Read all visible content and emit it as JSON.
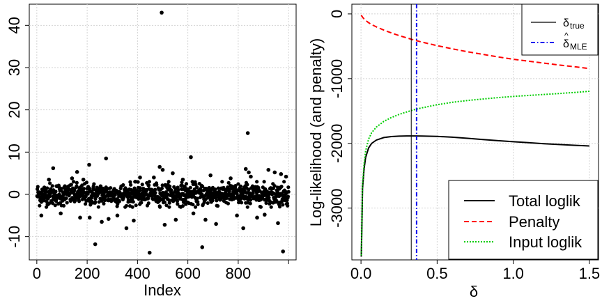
{
  "chart_data": [
    {
      "type": "scatter",
      "title": "",
      "xlabel": "Index",
      "ylabel": "",
      "xlim": [
        -30,
        1030
      ],
      "ylim": [
        -15.5,
        45
      ],
      "xticks": [
        0,
        200,
        400,
        600,
        800,
        1000
      ],
      "xtick_labels": [
        "0",
        "200",
        "400",
        "600",
        "800",
        ""
      ],
      "yticks": [
        -10,
        0,
        10,
        20,
        30,
        40
      ],
      "ytick_labels": [
        "-10",
        "0",
        "10",
        "20",
        "30",
        "40"
      ],
      "grid": true,
      "n_points": 1000,
      "base_spread_sd": 1.3,
      "outliers": [
        {
          "x": 18,
          "y": -5
        },
        {
          "x": 48,
          "y": 3.5
        },
        {
          "x": 65,
          "y": 6.2
        },
        {
          "x": 95,
          "y": -4.5
        },
        {
          "x": 140,
          "y": 3.8
        },
        {
          "x": 160,
          "y": 5.3
        },
        {
          "x": 172,
          "y": -5.5
        },
        {
          "x": 185,
          "y": 3.5
        },
        {
          "x": 208,
          "y": 7
        },
        {
          "x": 210,
          "y": -5.5
        },
        {
          "x": 232,
          "y": -11.8
        },
        {
          "x": 258,
          "y": -6.5
        },
        {
          "x": 275,
          "y": 8.5
        },
        {
          "x": 285,
          "y": -5.8
        },
        {
          "x": 320,
          "y": -5
        },
        {
          "x": 356,
          "y": -8
        },
        {
          "x": 385,
          "y": -6.2
        },
        {
          "x": 410,
          "y": 4
        },
        {
          "x": 448,
          "y": -13.8
        },
        {
          "x": 465,
          "y": 4
        },
        {
          "x": 488,
          "y": 6.5
        },
        {
          "x": 496,
          "y": 43
        },
        {
          "x": 500,
          "y": 5.8
        },
        {
          "x": 508,
          "y": -7.2
        },
        {
          "x": 540,
          "y": 5
        },
        {
          "x": 552,
          "y": -6
        },
        {
          "x": 580,
          "y": 3.5
        },
        {
          "x": 612,
          "y": 8.8
        },
        {
          "x": 622,
          "y": -4.5
        },
        {
          "x": 657,
          "y": -12.5
        },
        {
          "x": 670,
          "y": -6
        },
        {
          "x": 690,
          "y": 4.5
        },
        {
          "x": 712,
          "y": -7
        },
        {
          "x": 770,
          "y": 3.8
        },
        {
          "x": 795,
          "y": -5
        },
        {
          "x": 820,
          "y": -8
        },
        {
          "x": 830,
          "y": 6
        },
        {
          "x": 838,
          "y": 14.5
        },
        {
          "x": 842,
          "y": 5.2
        },
        {
          "x": 850,
          "y": 4.2
        },
        {
          "x": 875,
          "y": -5.5
        },
        {
          "x": 905,
          "y": -4.8
        },
        {
          "x": 920,
          "y": 5.8
        },
        {
          "x": 945,
          "y": 5.2
        },
        {
          "x": 958,
          "y": -6.8
        },
        {
          "x": 970,
          "y": 4.8
        },
        {
          "x": 978,
          "y": -13.5
        },
        {
          "x": 990,
          "y": 4.2
        }
      ]
    },
    {
      "type": "line",
      "title": "",
      "xlabel": "δ",
      "ylabel": "Log-likelihood (and penalty)",
      "xlim": [
        -0.06,
        1.56
      ],
      "ylim": [
        -3800,
        150
      ],
      "xticks": [
        0,
        0.5,
        1.0,
        1.5
      ],
      "xtick_labels": [
        "0.0",
        "0.5",
        "1.0",
        "1.5"
      ],
      "yticks": [
        -3000,
        -2000,
        -1000,
        0
      ],
      "ytick_labels": [
        "-3000",
        "-2000",
        "-1000",
        "0"
      ],
      "grid": true,
      "vlines": [
        {
          "name": "δ true",
          "x": 0.33,
          "color": "#000000",
          "style": "solid"
        },
        {
          "name": "δ MLE",
          "x": 0.365,
          "color": "#0000ee",
          "style": "dotdash"
        }
      ],
      "series": [
        {
          "name": "Total loglik",
          "color": "#000000",
          "style": "solid",
          "x": [
            0.002,
            0.005,
            0.01,
            0.02,
            0.03,
            0.05,
            0.07,
            0.1,
            0.15,
            0.2,
            0.25,
            0.3,
            0.35,
            0.4,
            0.5,
            0.6,
            0.7,
            0.8,
            0.9,
            1.0,
            1.1,
            1.2,
            1.3,
            1.4,
            1.5
          ],
          "y": [
            -3750,
            -3400,
            -2700,
            -2400,
            -2220,
            -2070,
            -2000,
            -1950,
            -1910,
            -1895,
            -1888,
            -1885,
            -1885,
            -1887,
            -1893,
            -1905,
            -1922,
            -1940,
            -1958,
            -1975,
            -1990,
            -2005,
            -2018,
            -2030,
            -2040
          ]
        },
        {
          "name": "Penalty",
          "color": "#ff0000",
          "style": "dashed",
          "x": [
            0.002,
            0.01,
            0.02,
            0.03,
            0.05,
            0.07,
            0.1,
            0.15,
            0.2,
            0.25,
            0.3,
            0.35,
            0.4,
            0.5,
            0.6,
            0.7,
            0.8,
            0.9,
            1.0,
            1.1,
            1.2,
            1.3,
            1.4,
            1.5
          ],
          "y": [
            -20,
            -50,
            -78,
            -100,
            -135,
            -165,
            -200,
            -250,
            -295,
            -335,
            -370,
            -405,
            -435,
            -490,
            -540,
            -585,
            -625,
            -665,
            -700,
            -730,
            -760,
            -790,
            -815,
            -845
          ]
        },
        {
          "name": "Input loglik",
          "color": "#00cd00",
          "style": "dotted",
          "x": [
            0.002,
            0.005,
            0.01,
            0.02,
            0.03,
            0.05,
            0.07,
            0.1,
            0.15,
            0.2,
            0.25,
            0.3,
            0.35,
            0.4,
            0.5,
            0.6,
            0.7,
            0.8,
            0.9,
            1.0,
            1.1,
            1.2,
            1.3,
            1.4,
            1.5
          ],
          "y": [
            -3730,
            -3350,
            -2650,
            -2320,
            -2120,
            -1935,
            -1835,
            -1750,
            -1660,
            -1600,
            -1553,
            -1515,
            -1480,
            -1452,
            -1403,
            -1365,
            -1337,
            -1315,
            -1293,
            -1275,
            -1260,
            -1245,
            -1230,
            -1215,
            -1195
          ]
        }
      ],
      "legend_top": [
        {
          "name": "δ",
          "sub": "true",
          "color": "#000000",
          "style": "solid"
        },
        {
          "name": "δ",
          "hat": "^",
          "sub": "MLE",
          "color": "#0000ee",
          "style": "dotdash"
        }
      ],
      "legend_bottom": [
        {
          "name": "Total loglik",
          "color": "#000000",
          "style": "solid"
        },
        {
          "name": "Penalty",
          "color": "#ff0000",
          "style": "dashed"
        },
        {
          "name": "Input loglik",
          "color": "#00cd00",
          "style": "dotted"
        }
      ]
    }
  ]
}
